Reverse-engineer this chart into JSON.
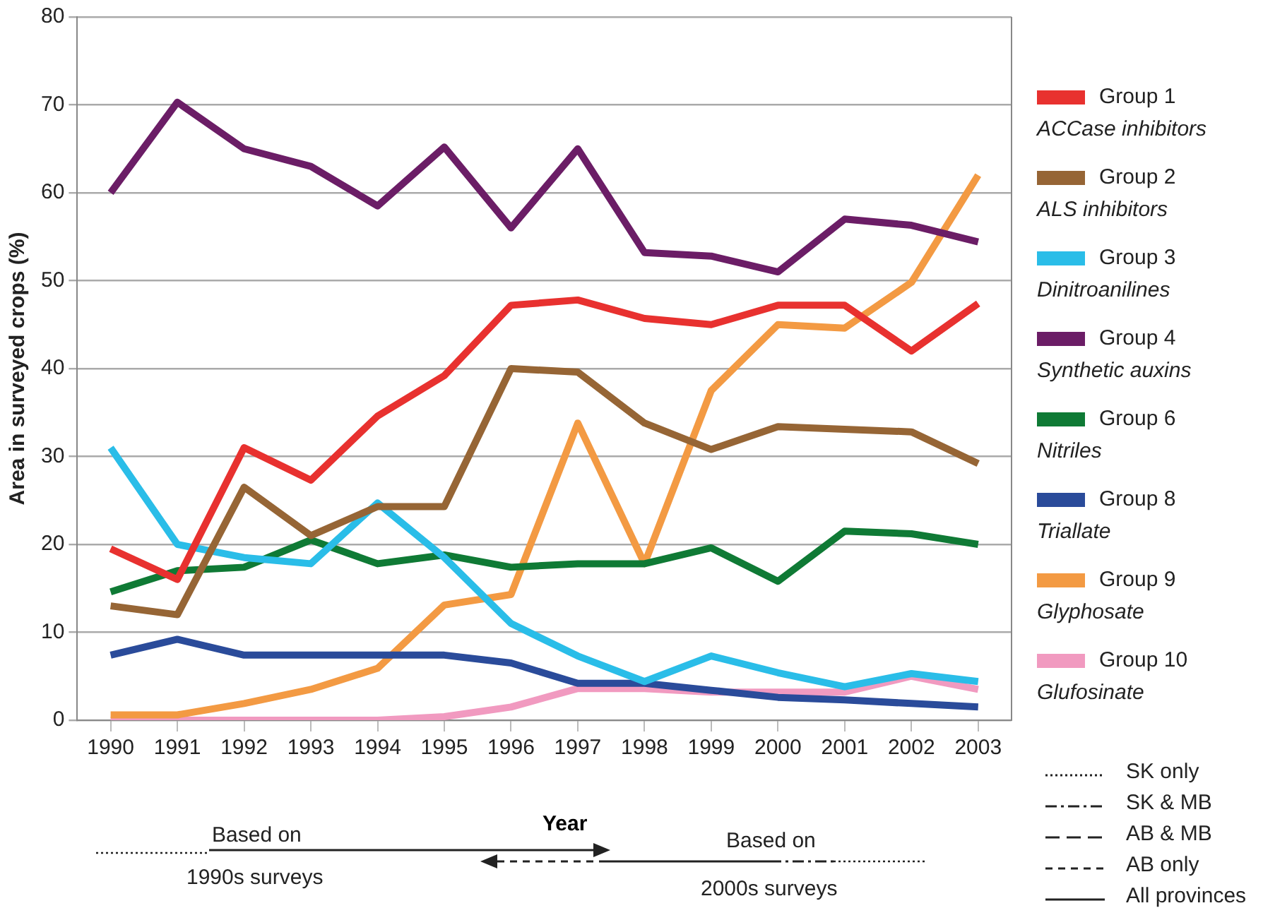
{
  "chart_data": {
    "type": "line",
    "xlabel": "Year",
    "ylabel": "Area in surveyed crops (%)",
    "categories": [
      "1990",
      "1991",
      "1992",
      "1993",
      "1994",
      "1995",
      "1996",
      "1997",
      "1998",
      "1999",
      "2000",
      "2001",
      "2002",
      "2003"
    ],
    "ylim": [
      0,
      80
    ],
    "yticks": [
      0,
      10,
      20,
      30,
      40,
      50,
      60,
      70,
      80
    ],
    "grid": "y",
    "legend": "right",
    "marker": "none",
    "line_style": "solid",
    "series": [
      {
        "name": "Group 1\nACCase inhibitors",
        "color": "#e8312f",
        "values": [
          19.5,
          16,
          31,
          27.3,
          34.6,
          39.2,
          47.2,
          47.8,
          45.7,
          45,
          47.2,
          47.2,
          42,
          47.4
        ]
      },
      {
        "name": "Group 2\nALS inhibitors",
        "color": "#966535",
        "values": [
          13,
          12,
          26.5,
          21,
          24.3,
          24.3,
          40,
          39.6,
          33.8,
          30.8,
          33.4,
          33.1,
          32.8,
          29.2
        ]
      },
      {
        "name": "Group 3\nDinitroanilines",
        "color": "#2abde8",
        "values": [
          31,
          20,
          18.5,
          17.8,
          24.7,
          18.5,
          11,
          7.3,
          4.4,
          7.3,
          5.4,
          3.8,
          5.3,
          4.4
        ]
      },
      {
        "name": "Group 4\nSynthetic auxins",
        "color": "#6b1d66",
        "values": [
          60,
          70.3,
          65,
          63,
          58.5,
          65.2,
          56,
          65,
          53.2,
          52.8,
          51,
          57,
          56.3,
          54.4
        ]
      },
      {
        "name": "Group 6\nNitriles",
        "color": "#0f7a35",
        "values": [
          14.6,
          17,
          17.4,
          20.5,
          17.8,
          18.8,
          17.4,
          17.8,
          17.8,
          19.6,
          15.8,
          21.5,
          21.2,
          20
        ]
      },
      {
        "name": "Group 8\nTriallate",
        "color": "#2a4b9a",
        "values": [
          7.4,
          9.2,
          7.4,
          7.4,
          7.4,
          7.4,
          6.5,
          4.2,
          4.2,
          3.4,
          2.6,
          2.3,
          1.9,
          1.5
        ]
      },
      {
        "name": "Group 9\nGlyphosate",
        "color": "#f39a43",
        "values": [
          0.6,
          0.6,
          1.9,
          3.5,
          5.9,
          13.1,
          14.3,
          33.8,
          17.8,
          37.5,
          45,
          44.6,
          49.8,
          62
        ]
      },
      {
        "name": "Group 10\nGlufosinate",
        "color": "#f19ac0",
        "values": [
          0,
          0,
          0,
          0,
          0,
          0.4,
          1.5,
          3.6,
          3.6,
          3.2,
          3.2,
          3.2,
          5,
          3.5
        ]
      }
    ],
    "annotations": [
      "SK only",
      "SK & MB",
      "AB & MB",
      "AB only",
      "All provinces",
      "Based on",
      "1990s surveys",
      "Based on",
      "2000s surveys"
    ]
  }
}
